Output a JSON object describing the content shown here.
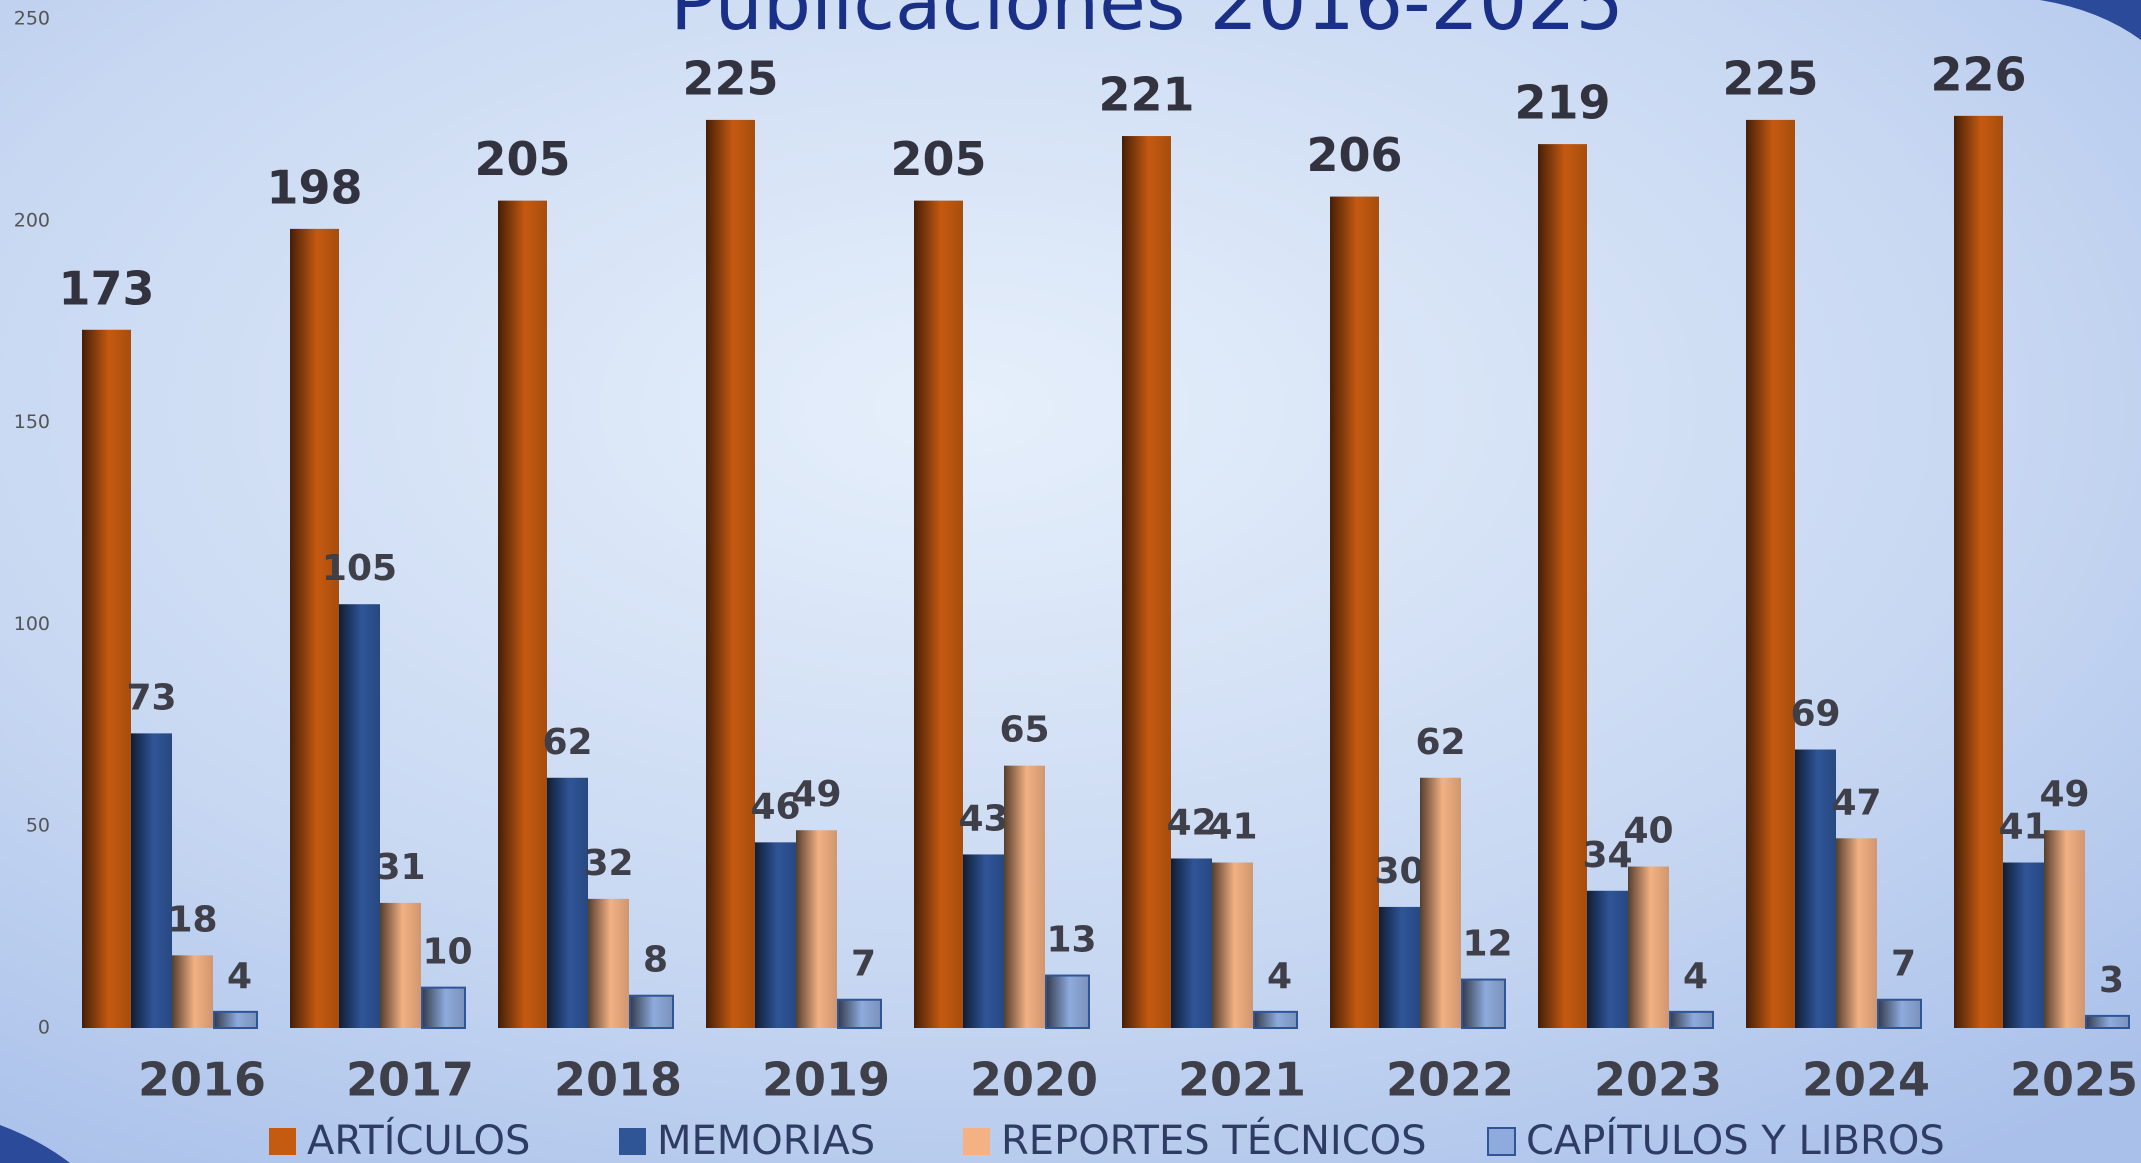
{
  "chart_data": {
    "type": "bar",
    "title": "Publicaciones  2016-2025",
    "categories": [
      "2016",
      "2017",
      "2018",
      "2019",
      "2020",
      "2021",
      "2022",
      "2023",
      "2024",
      "2025"
    ],
    "series": [
      {
        "name": "ARTÍCULOS",
        "color": "#c55a11",
        "values": [
          173,
          198,
          205,
          225,
          205,
          221,
          206,
          219,
          225,
          226
        ]
      },
      {
        "name": "MEMORIAS",
        "color": "#2f5597",
        "values": [
          73,
          105,
          62,
          46,
          43,
          42,
          30,
          34,
          69,
          41
        ]
      },
      {
        "name": "REPORTES TÉCNICOS",
        "color": "#f4b183",
        "values": [
          18,
          31,
          32,
          49,
          65,
          41,
          62,
          40,
          47,
          49
        ]
      },
      {
        "name": "CAPÍTULOS Y LIBROS",
        "color": "#8faadc",
        "values": [
          4,
          10,
          8,
          7,
          13,
          4,
          12,
          4,
          7,
          3
        ]
      }
    ],
    "ylim": [
      0,
      250
    ],
    "yticks": [
      0,
      50,
      100,
      150,
      200,
      250
    ],
    "grid": false,
    "legend": "bottom"
  }
}
